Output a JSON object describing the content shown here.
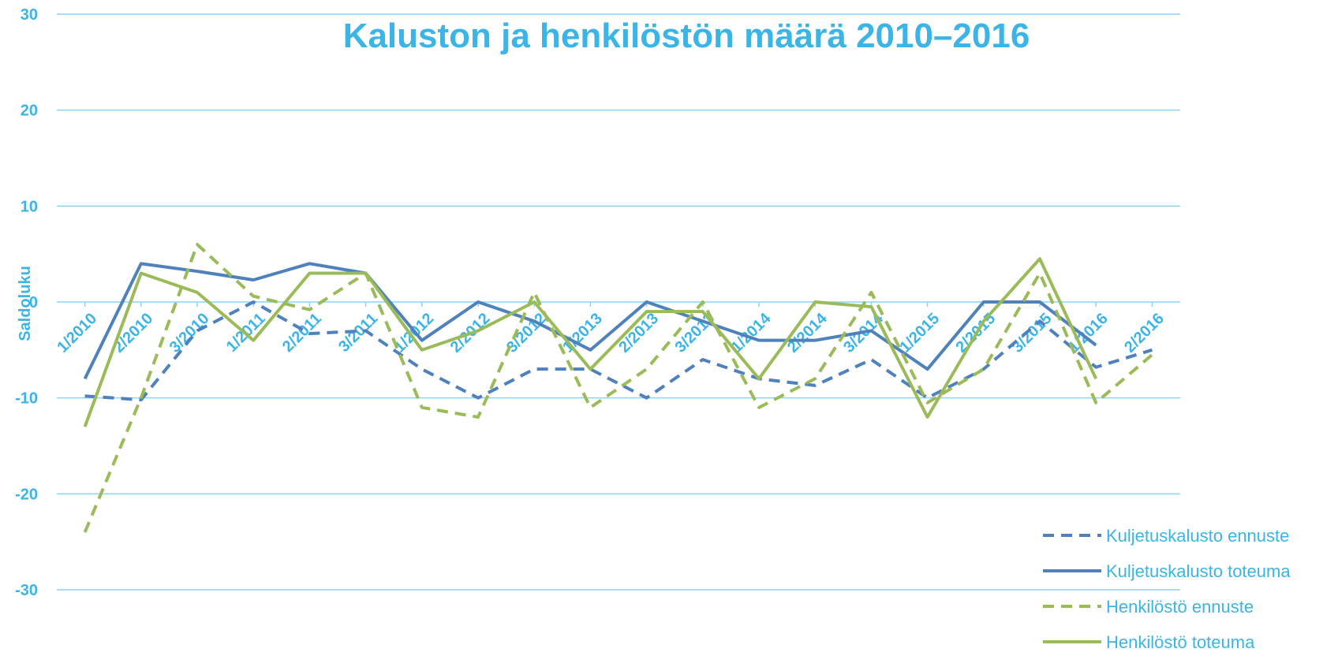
{
  "chart_data": {
    "type": "line",
    "title": "Kaluston ja henkilöstön määrä 2010–2016",
    "y_label": "Saldoluku",
    "categories": [
      "1/2010",
      "2/2010",
      "3/2010",
      "1/2011",
      "2/2011",
      "3/2011",
      "1/2012",
      "2/2012",
      "3/2012",
      "1/2013",
      "2/2013",
      "3/2013",
      "1/2014",
      "2/2014",
      "3/2014",
      "1/2015",
      "2/2015",
      "3/2015",
      "1/2016",
      "2/2016"
    ],
    "series": [
      {
        "name": "Kuljetuskalusto ennuste",
        "color": "#4f81bd",
        "dash": true,
        "values": [
          -9.8,
          -10.2,
          -3,
          0,
          -3.3,
          -3,
          -7,
          -10,
          -7,
          -7,
          -10,
          -6,
          -8,
          -8.7,
          -6,
          -10,
          -7,
          -2,
          -6.8,
          -5
        ]
      },
      {
        "name": "Kuljetuskalusto toteuma",
        "color": "#4f81bd",
        "dash": false,
        "values": [
          -8,
          4,
          3.2,
          2.3,
          4,
          3,
          -4,
          0,
          -2,
          -5,
          0,
          -2,
          -4,
          -4,
          -3,
          -7,
          0,
          0,
          -4.5,
          null
        ]
      },
      {
        "name": "Henkilöstö ennuste",
        "color": "#9bbb59",
        "dash": true,
        "values": [
          -24,
          -10,
          6,
          0.6,
          -0.8,
          3,
          -11,
          -12,
          1,
          -11,
          -7,
          0,
          -11,
          -8,
          1,
          -10.5,
          -7,
          3,
          -10.5,
          -5.5
        ]
      },
      {
        "name": "Henkilöstö toteuma",
        "color": "#9bbb59",
        "dash": false,
        "values": [
          -13,
          3,
          1,
          -4,
          3,
          3,
          -5,
          -3,
          0,
          -7,
          -1,
          -1,
          -8,
          0,
          -0.5,
          -12,
          -2,
          4.5,
          -8,
          null
        ]
      }
    ],
    "ylim": [
      -30,
      30
    ],
    "yticks": [
      -30,
      -20,
      -10,
      0,
      10,
      20,
      30
    ],
    "grid": true,
    "legend": "bottom-right"
  }
}
